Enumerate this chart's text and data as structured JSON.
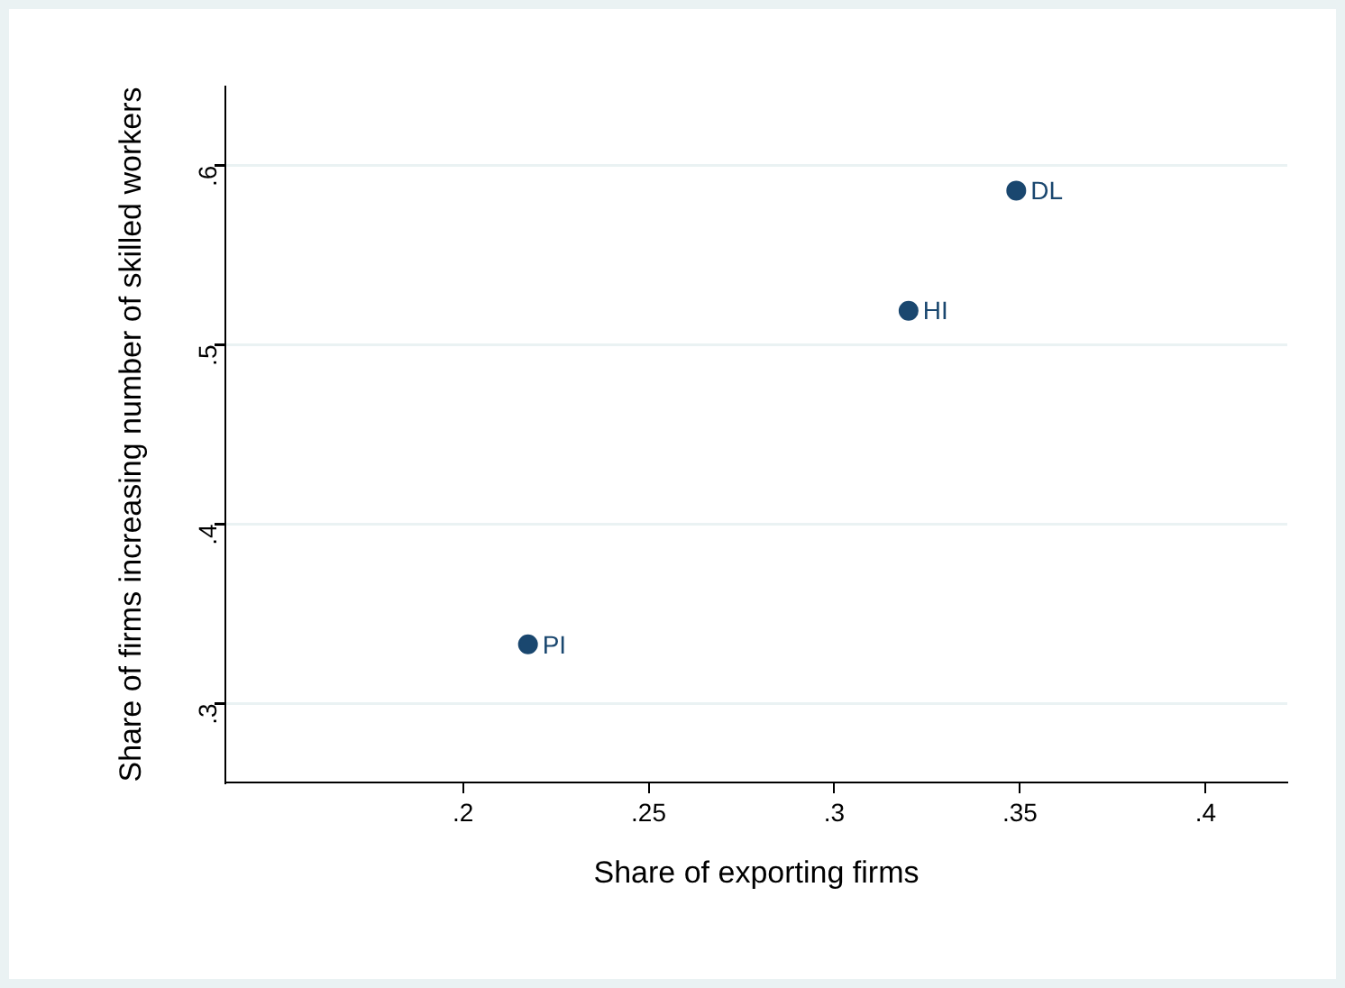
{
  "chart_data": {
    "type": "scatter",
    "xlabel": "Share of exporting firms",
    "ylabel": "Share of firms increasing number of skilled workers",
    "x": [
      0.2175,
      0.32,
      0.349
    ],
    "values": [
      0.333,
      0.519,
      0.586
    ],
    "color": "#1a476f",
    "marker": "circle",
    "grid": "y",
    "legend": false,
    "xlim": [
      0.136,
      0.422
    ],
    "xticks": [
      {
        "value": 0.2,
        "label": ".2"
      },
      {
        "value": 0.25,
        "label": ".25"
      },
      {
        "value": 0.3,
        "label": ".3"
      },
      {
        "value": 0.35,
        "label": ".35"
      },
      {
        "value": 0.4,
        "label": ".4"
      }
    ],
    "ylim": [
      0.256,
      0.644
    ],
    "yticks": [
      {
        "value": 0.3,
        "label": ".3"
      },
      {
        "value": 0.4,
        "label": ".4"
      },
      {
        "value": 0.5,
        "label": ".5"
      },
      {
        "value": 0.6,
        "label": ".6"
      }
    ],
    "annotations": [
      {
        "text": "PI",
        "x": 0.2175,
        "y": 0.333
      },
      {
        "text": "HI",
        "x": 0.32,
        "y": 0.519
      },
      {
        "text": "DL",
        "x": 0.349,
        "y": 0.586
      }
    ]
  }
}
